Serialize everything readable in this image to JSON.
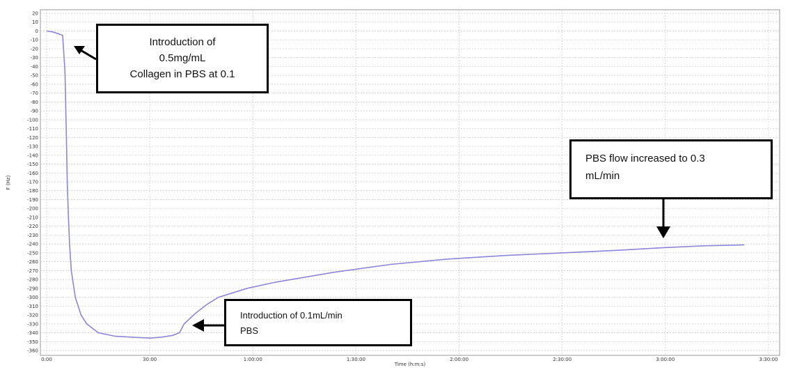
{
  "chart_data": {
    "type": "line",
    "title": "",
    "xlabel": "Time (h:m:s)",
    "ylabel": "F (Hz)",
    "xlim": [
      0,
      12600
    ],
    "ylim": [
      -365,
      22
    ],
    "y_ticks": [
      20,
      10,
      0,
      -10,
      -20,
      -30,
      -40,
      -50,
      -60,
      -70,
      -80,
      -90,
      -100,
      -110,
      -120,
      -130,
      -140,
      -150,
      -160,
      -170,
      -180,
      -190,
      -200,
      -210,
      -220,
      -230,
      -240,
      -250,
      -260,
      -270,
      -280,
      -290,
      -300,
      -310,
      -320,
      -330,
      -340,
      -350,
      -360
    ],
    "x_ticks": [
      {
        "value": 0,
        "label": "0:00"
      },
      {
        "value": 1800,
        "label": "30:00"
      },
      {
        "value": 3600,
        "label": "1:00:00"
      },
      {
        "value": 5400,
        "label": "1:30:00"
      },
      {
        "value": 7200,
        "label": "2:00:00"
      },
      {
        "value": 9000,
        "label": "2:30:00"
      },
      {
        "value": 10800,
        "label": "3:00:00"
      },
      {
        "value": 12600,
        "label": "3:30:00"
      }
    ],
    "grid": true,
    "series": [
      {
        "color": "#8b86d6",
        "x": [
          0,
          100,
          200,
          280,
          320,
          345,
          360,
          380,
          400,
          430,
          500,
          600,
          700,
          900,
          1200,
          1500,
          1800,
          2000,
          2200,
          2320,
          2400,
          2600,
          2800,
          3000,
          3500,
          4000,
          5000,
          6000,
          7000,
          8000,
          9000,
          10000,
          10800,
          11500,
          12180
        ],
        "y": [
          0,
          -1,
          -3,
          -5,
          -45,
          -120,
          -170,
          -210,
          -240,
          -270,
          -300,
          -320,
          -330,
          -340,
          -344,
          -345,
          -346,
          -345,
          -343,
          -340,
          -330,
          -318,
          -308,
          -300,
          -290,
          -283,
          -272,
          -263,
          -257,
          -253,
          -250,
          -247,
          -244,
          -242,
          -241
        ]
      }
    ]
  },
  "annotations": {
    "box1": [
      "Introduction of",
      "0.5mg/mL",
      "Collagen in PBS at 0.1"
    ],
    "box2": [
      "Introduction of 0.1mL/min",
      "PBS"
    ],
    "box3": [
      "PBS flow increased to 0.3",
      "mL/min"
    ]
  }
}
